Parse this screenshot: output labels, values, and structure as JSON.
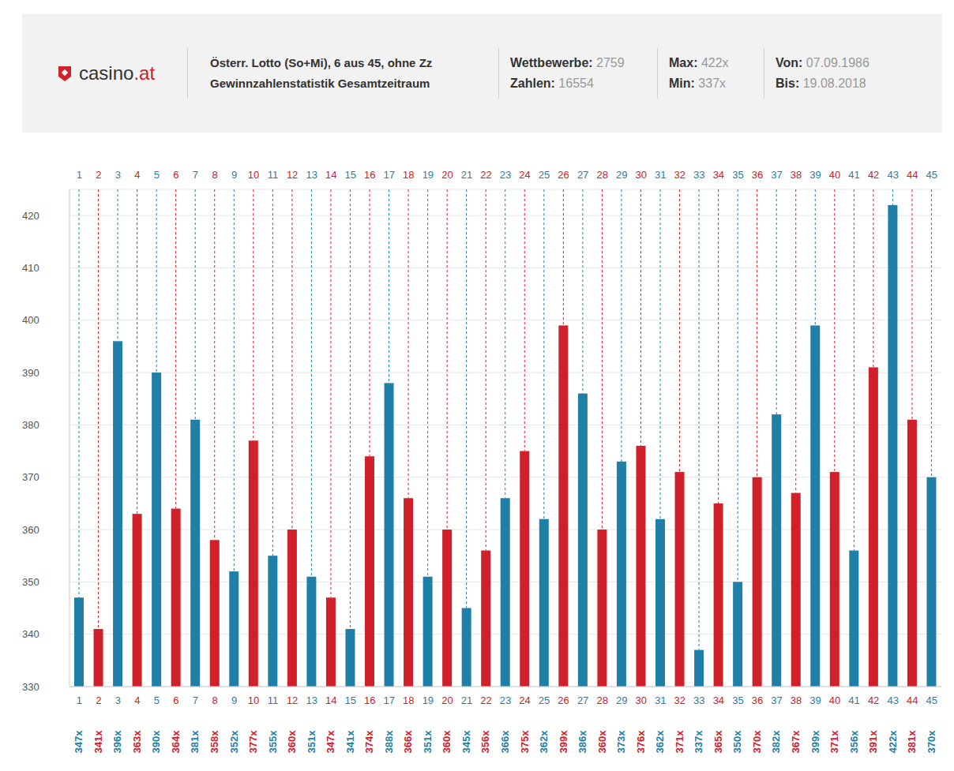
{
  "header": {
    "logo": "casino",
    "logo_suffix": ".at",
    "stats": [
      [
        {
          "label": "Wettbewerbe:",
          "value": "2759"
        },
        {
          "label": "Zahlen:",
          "value": "16554"
        }
      ],
      [
        {
          "label": "Max:",
          "value": "422x"
        },
        {
          "label": "Min:",
          "value": "337x"
        }
      ],
      [
        {
          "label": "Von:",
          "value": "07.09.1986"
        },
        {
          "label": "Bis:",
          "value": "19.08.2018"
        }
      ]
    ]
  },
  "chart_data": {
    "type": "bar",
    "title": "Österr. Lotto (So+Mi), 6 aus 45, ohne Zz",
    "subtitle": "Gewinnzahlenstatistik Gesamtzeitraum",
    "categories": [
      1,
      2,
      3,
      4,
      5,
      6,
      7,
      8,
      9,
      10,
      11,
      12,
      13,
      14,
      15,
      16,
      17,
      18,
      19,
      20,
      21,
      22,
      23,
      24,
      25,
      26,
      27,
      28,
      29,
      30,
      31,
      32,
      33,
      34,
      35,
      36,
      37,
      38,
      39,
      40,
      41,
      42,
      43,
      44,
      45
    ],
    "values": [
      347,
      341,
      396,
      363,
      390,
      364,
      381,
      358,
      352,
      377,
      355,
      360,
      351,
      347,
      341,
      374,
      388,
      366,
      351,
      360,
      345,
      356,
      366,
      375,
      362,
      399,
      386,
      360,
      373,
      376,
      362,
      371,
      337,
      365,
      350,
      370,
      382,
      367,
      399,
      371,
      356,
      391,
      422,
      381,
      370
    ],
    "value_labels": [
      "347x",
      "341x",
      "396x",
      "363x",
      "390x",
      "364x",
      "381x",
      "358x",
      "352x",
      "377x",
      "355x",
      "360x",
      "351x",
      "347x",
      "341x",
      "374x",
      "388x",
      "366x",
      "351x",
      "360x",
      "345x",
      "356x",
      "366x",
      "375x",
      "362x",
      "399x",
      "386x",
      "360x",
      "373x",
      "376x",
      "362x",
      "371x",
      "337x",
      "365x",
      "350x",
      "370x",
      "382x",
      "367x",
      "399x",
      "371x",
      "356x",
      "391x",
      "422x",
      "381x",
      "370x"
    ],
    "colors": [
      "#1f7fa6",
      "#d0202a",
      "#1f7fa6",
      "#d0202a",
      "#1f7fa6",
      "#d0202a",
      "#1f7fa6",
      "#d0202a",
      "#1f7fa6",
      "#d0202a",
      "#1f7fa6",
      "#d0202a",
      "#1f7fa6",
      "#d0202a",
      "#1f7fa6",
      "#d0202a",
      "#1f7fa6",
      "#d0202a",
      "#1f7fa6",
      "#d0202a",
      "#1f7fa6",
      "#d0202a",
      "#1f7fa6",
      "#d0202a",
      "#1f7fa6",
      "#d0202a",
      "#1f7fa6",
      "#d0202a",
      "#1f7fa6",
      "#d0202a",
      "#1f7fa6",
      "#d0202a",
      "#1f7fa6",
      "#d0202a",
      "#1f7fa6",
      "#d0202a",
      "#1f7fa6",
      "#d0202a",
      "#1f7fa6",
      "#d0202a",
      "#1f7fa6",
      "#d0202a",
      "#1f7fa6",
      "#d0202a",
      "#1f7fa6"
    ],
    "ylim": [
      330,
      425
    ],
    "yticks": [
      330,
      340,
      350,
      360,
      370,
      380,
      390,
      400,
      410,
      420
    ],
    "grid": true,
    "data_labels": true
  }
}
